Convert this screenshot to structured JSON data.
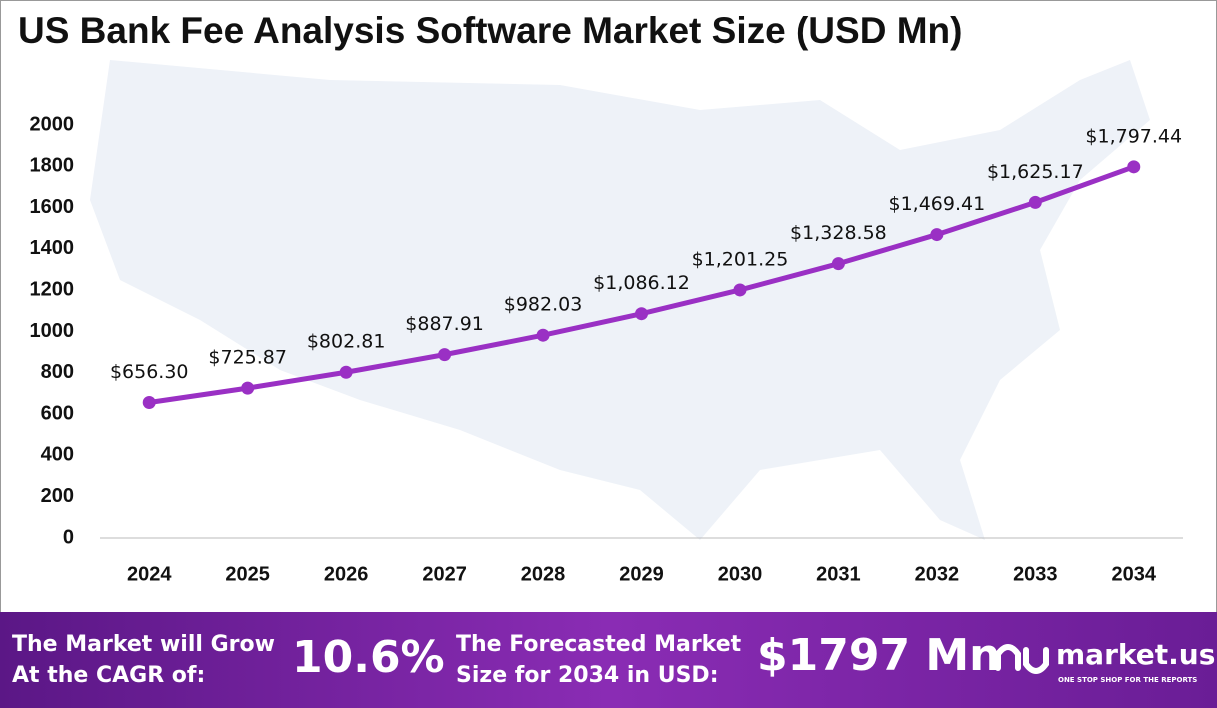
{
  "chart_data": {
    "type": "line",
    "title": "US Bank Fee Analysis Software Market Size (USD Mn)",
    "categories": [
      "2024",
      "2025",
      "2026",
      "2027",
      "2028",
      "2029",
      "2030",
      "2031",
      "2032",
      "2033",
      "2034"
    ],
    "series": [
      {
        "name": "Market Size",
        "color": "#9a30c4",
        "values": [
          656.3,
          725.87,
          802.81,
          887.91,
          982.03,
          1086.12,
          1201.25,
          1328.58,
          1469.41,
          1625.17,
          1797.44
        ],
        "value_labels": [
          "$656.30",
          "$725.87",
          "$802.81",
          "$887.91",
          "$982.03",
          "$1,086.12",
          "$1,201.25",
          "$1,328.58",
          "$1,469.41",
          "$1,625.17",
          "$1,797.44"
        ]
      }
    ],
    "ylim": [
      0,
      2000
    ],
    "yticks": [
      0,
      200,
      400,
      600,
      800,
      1000,
      1200,
      1400,
      1600,
      1800,
      2000
    ],
    "grid": false
  },
  "footer": {
    "cagr_text": [
      "The Market will Grow",
      "At the CAGR of:"
    ],
    "cagr_value": "10.6%",
    "forecast_text": [
      "The Forecasted Market",
      "Size for 2034 in USD:"
    ],
    "forecast_value": "$1797 Mn",
    "brand": "market.us",
    "tagline": "ONE STOP SHOP FOR THE REPORTS"
  }
}
